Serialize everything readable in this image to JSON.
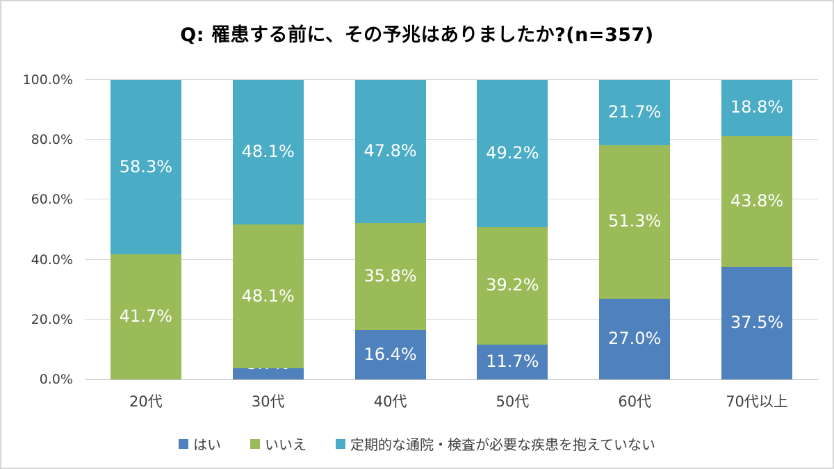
{
  "title": "Q: 罹患する前に、その予兆はありましたか?(n=357)",
  "colors": {
    "series_yes": "#4F81BD",
    "series_no": "#9BBB59",
    "series_none": "#4BACC6",
    "gridline": "#D9D9D9",
    "axis_line": "#BFBFBF",
    "axis_text": "#3F3F3F",
    "value_label_text": "#FFFFFF",
    "border": "#D6D6D6"
  },
  "chart_data": {
    "type": "bar",
    "stacked": true,
    "percent_stacked": true,
    "title": "Q: 罹患する前に、その予兆はありましたか?(n=357)",
    "categories": [
      "20代",
      "30代",
      "40代",
      "50代",
      "60代",
      "70代以上"
    ],
    "series": [
      {
        "name": "はい",
        "color": "#4F81BD",
        "values": [
          0,
          3.7,
          16.4,
          11.7,
          27.0,
          37.5
        ],
        "labels": [
          "",
          "3.7%",
          "16.4%",
          "11.7%",
          "27.0%",
          "37.5%"
        ]
      },
      {
        "name": "いいえ",
        "color": "#9BBB59",
        "values": [
          41.7,
          48.1,
          35.8,
          39.2,
          51.3,
          43.8
        ],
        "labels": [
          "41.7%",
          "48.1%",
          "35.8%",
          "39.2%",
          "51.3%",
          "43.8%"
        ]
      },
      {
        "name": "定期的な通院・検査が必要な疾患を抱えていない",
        "color": "#4BACC6",
        "values": [
          58.3,
          48.1,
          47.8,
          49.2,
          21.7,
          18.8
        ],
        "labels": [
          "58.3%",
          "48.1%",
          "47.8%",
          "49.2%",
          "21.7%",
          "18.8%"
        ]
      }
    ],
    "y_axis": {
      "ticks": [
        "100.0%",
        "80.0%",
        "60.0%",
        "40.0%",
        "20.0%",
        "0.0%"
      ],
      "min": 0,
      "max": 100,
      "step": 20,
      "unit": "%"
    },
    "grid": true,
    "legend_position": "bottom",
    "legend": [
      "はい",
      "いいえ",
      "定期的な通院・検査が必要な疾患を抱えていない"
    ]
  }
}
